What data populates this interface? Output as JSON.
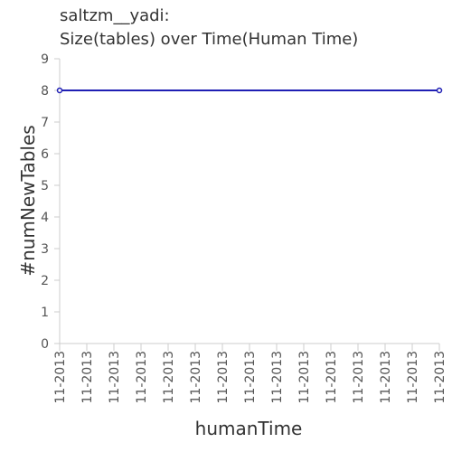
{
  "chart_data": {
    "type": "line",
    "title": "saltzm__yadi:",
    "subtitle": "Size(tables) over Time(Human Time)",
    "xlabel": "humanTime",
    "ylabel": "#numNewTables",
    "ylim": [
      0,
      9
    ],
    "yticks": [
      0,
      1,
      2,
      3,
      4,
      5,
      6,
      7,
      8,
      9
    ],
    "xticks": [
      "11-2013",
      "11-2013",
      "11-2013",
      "11-2013",
      "11-2013",
      "11-2013",
      "11-2013",
      "11-2013",
      "11-2013",
      "11-2013",
      "11-2013",
      "11-2013",
      "11-2013",
      "11-2013",
      "11-2013"
    ],
    "series": [
      {
        "name": "numNewTables",
        "x": [
          0,
          1
        ],
        "values": [
          8,
          8
        ],
        "color": "#1f1fb4"
      }
    ]
  }
}
